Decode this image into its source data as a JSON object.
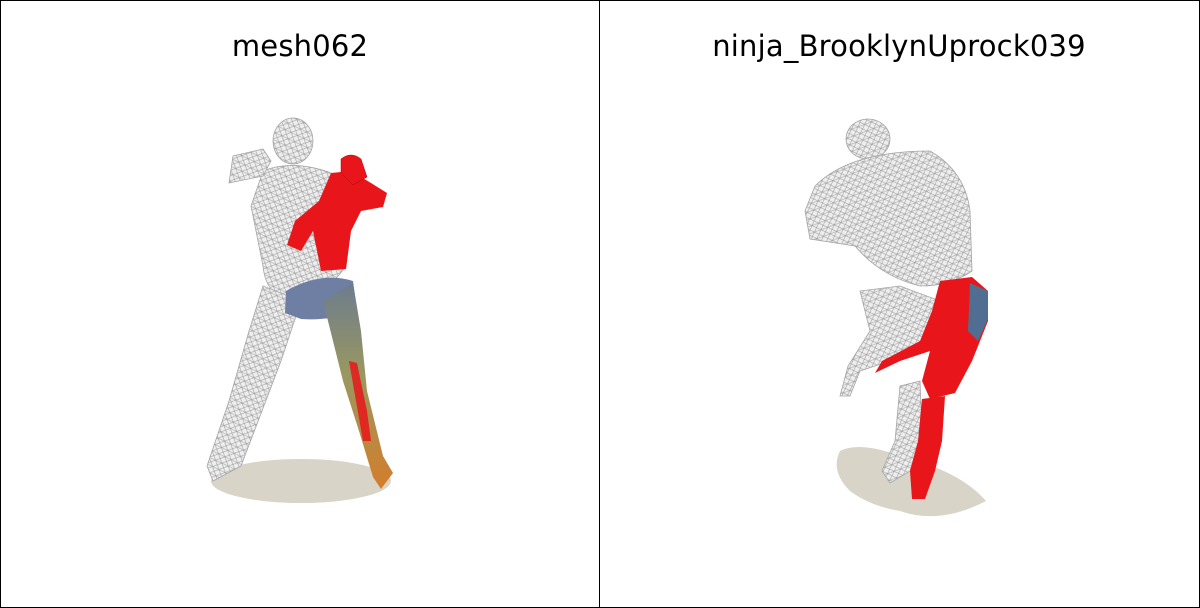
{
  "panels": [
    {
      "title": "mesh062"
    },
    {
      "title": "ninja_BrooklynUprock039"
    }
  ],
  "colors": {
    "wireframe": "#e6e6e6",
    "wire_stroke": "#9a9a9a",
    "highlight": "#e8161a",
    "shadow": "#d8d4c8",
    "blend_blue": "#4f6e92",
    "blend_olive": "#9a9860",
    "blend_orange": "#d47d2a"
  }
}
